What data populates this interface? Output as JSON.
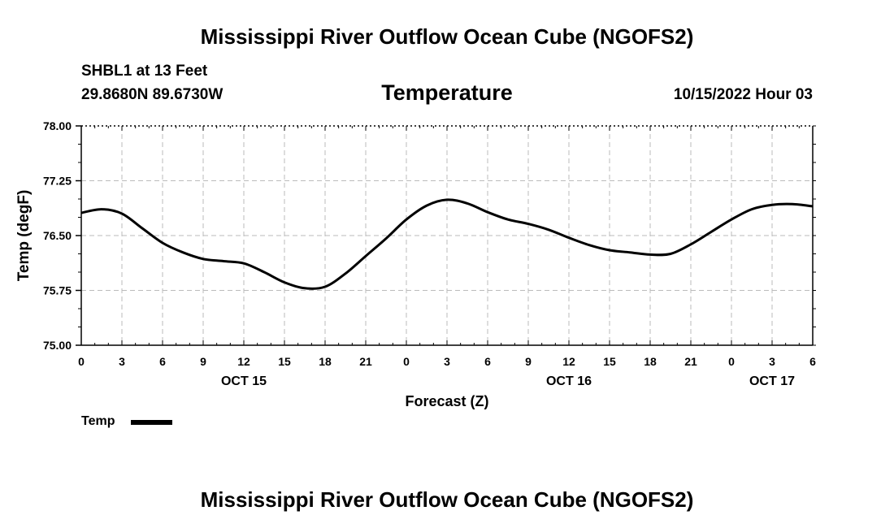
{
  "header": {
    "main_title": "Mississippi River Outflow Ocean Cube (NGOFS2)",
    "station": "SHBL1 at 13 Feet",
    "coordinates": "29.8680N  89.6730W",
    "variable_title": "Temperature",
    "datetime": "10/15/2022 Hour 03"
  },
  "legend": {
    "label": "Temp"
  },
  "footer": {
    "title": "Mississippi River Outflow Ocean Cube (NGOFS2)"
  },
  "colors": {
    "line": "#000000",
    "grid": "#bbbbbb"
  },
  "chart_data": {
    "type": "line",
    "title": "Temperature",
    "xlabel": "Forecast (Z)",
    "ylabel": "Temp (degF)",
    "xlim": [
      0,
      54
    ],
    "ylim": [
      75.0,
      78.0
    ],
    "y_ticks": [
      "75.00",
      "75.75",
      "76.50",
      "77.25",
      "78.00"
    ],
    "x_tick_hours": [
      0,
      3,
      6,
      9,
      12,
      15,
      18,
      21,
      24,
      27,
      30,
      33,
      36,
      39,
      42,
      45,
      48,
      51,
      54
    ],
    "x_tick_labels": [
      "0",
      "3",
      "6",
      "9",
      "12",
      "15",
      "18",
      "21",
      "0",
      "3",
      "6",
      "9",
      "12",
      "15",
      "18",
      "21",
      "0",
      "3",
      "6"
    ],
    "date_labels": [
      {
        "hour": 12,
        "label": "OCT 15"
      },
      {
        "hour": 36,
        "label": "OCT 16"
      },
      {
        "hour": 51,
        "label": "OCT 17"
      }
    ],
    "grid": true,
    "legend_position": "bottom-left",
    "series": [
      {
        "name": "Temp",
        "x": [
          0,
          1.5,
          3,
          4.5,
          6,
          7.5,
          9,
          10.5,
          12,
          13.5,
          15,
          16.5,
          18,
          19.5,
          21,
          22.5,
          24,
          25.5,
          27,
          28.5,
          30,
          31.5,
          33,
          34.5,
          36,
          37.5,
          39,
          40.5,
          42,
          43.5,
          45,
          46.5,
          48,
          49.5,
          51,
          52.5,
          54
        ],
        "values": [
          76.81,
          76.86,
          76.8,
          76.6,
          76.4,
          76.27,
          76.18,
          76.15,
          76.12,
          76.0,
          75.86,
          75.78,
          75.8,
          75.98,
          76.22,
          76.46,
          76.72,
          76.91,
          76.99,
          76.94,
          76.82,
          76.72,
          76.66,
          76.58,
          76.47,
          76.37,
          76.3,
          76.27,
          76.24,
          76.25,
          76.38,
          76.55,
          76.72,
          76.86,
          76.92,
          76.93,
          76.9
        ]
      }
    ]
  }
}
